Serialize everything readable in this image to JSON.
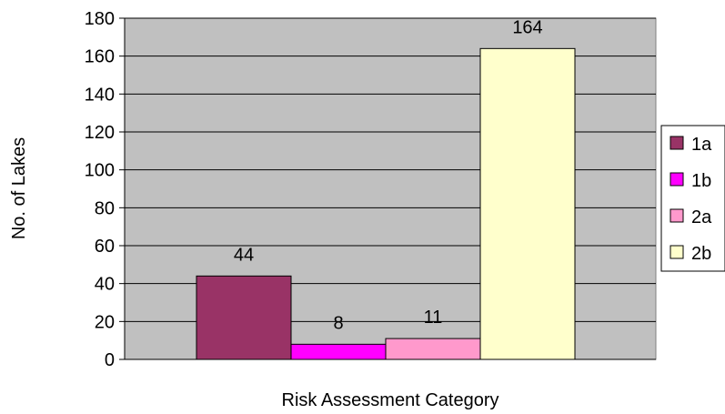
{
  "chart_data": {
    "type": "bar",
    "title": "",
    "xlabel": "Risk Assessment Category",
    "ylabel": "No. of Lakes",
    "ylim": [
      0,
      180
    ],
    "yticks": [
      0,
      20,
      40,
      60,
      80,
      100,
      120,
      140,
      160,
      180
    ],
    "grid": true,
    "legend_position": "right",
    "plot_background": "#c0c0c0",
    "series": [
      {
        "name": "1a",
        "value": 44,
        "color": "#993366"
      },
      {
        "name": "1b",
        "value": 8,
        "color": "#ff00ff"
      },
      {
        "name": "2a",
        "value": 11,
        "color": "#ff99cc"
      },
      {
        "name": "2b",
        "value": 164,
        "color": "#ffffcc"
      }
    ]
  }
}
